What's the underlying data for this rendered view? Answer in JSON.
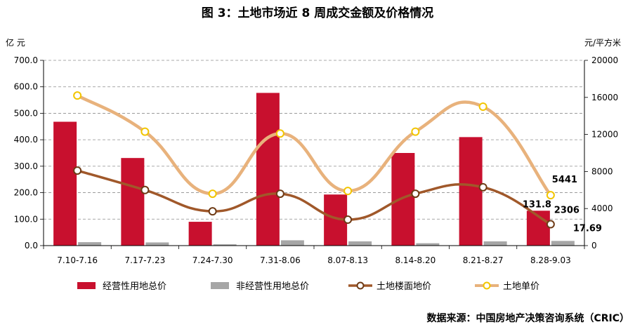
{
  "chart_data": {
    "type": "bar",
    "title": "图 3：土地市场近 8 周成交金额及价格情况",
    "left_unit": "亿  元",
    "right_unit": "元/平方米",
    "source": "数据来源：中国房地产决策咨询系统（CRIC）",
    "categories": [
      "7.10-7.16",
      "7.17-7.23",
      "7.24-7.30",
      "7.31-8.06",
      "8.07-8.13",
      "8.14-8.20",
      "8.21-8.27",
      "8.28-9.03"
    ],
    "ylim_left": [
      0,
      700
    ],
    "left_ticks": [
      "0.0",
      "100.0",
      "200.0",
      "300.0",
      "400.0",
      "500.0",
      "600.0",
      "700.0"
    ],
    "ylim_right": [
      0,
      20000
    ],
    "right_ticks": [
      "0",
      "4000",
      "8000",
      "12000",
      "16000",
      "20000"
    ],
    "series": [
      {
        "name": "经营性用地总价",
        "kind": "bar",
        "axis": "left",
        "color": "#c8102e",
        "values": [
          468,
          331,
          90,
          577,
          193,
          350,
          410,
          131.8
        ]
      },
      {
        "name": "非经营性用地总价",
        "kind": "bar",
        "axis": "left",
        "color": "#a6a6a6",
        "values": [
          13,
          12,
          5,
          20,
          16,
          9,
          16,
          17.69
        ]
      },
      {
        "name": "土地楼面地价",
        "kind": "line",
        "axis": "right",
        "color": "#a0582a",
        "values": [
          8100,
          6000,
          3700,
          5600,
          2800,
          5600,
          6300,
          2306
        ]
      },
      {
        "name": "土地单价",
        "kind": "line",
        "axis": "right",
        "color": "#e8b27c",
        "values": [
          16200,
          12300,
          5600,
          12100,
          5900,
          12300,
          15000,
          5441
        ]
      }
    ],
    "data_labels": [
      {
        "series": "经营性用地总价",
        "index": 7,
        "text": "131.8"
      },
      {
        "series": "非经营性用地总价",
        "index": 7,
        "text": "17.69"
      },
      {
        "series": "土地楼面地价",
        "index": 7,
        "text": "2306"
      },
      {
        "series": "土地单价",
        "index": 7,
        "text": "5441"
      }
    ]
  }
}
